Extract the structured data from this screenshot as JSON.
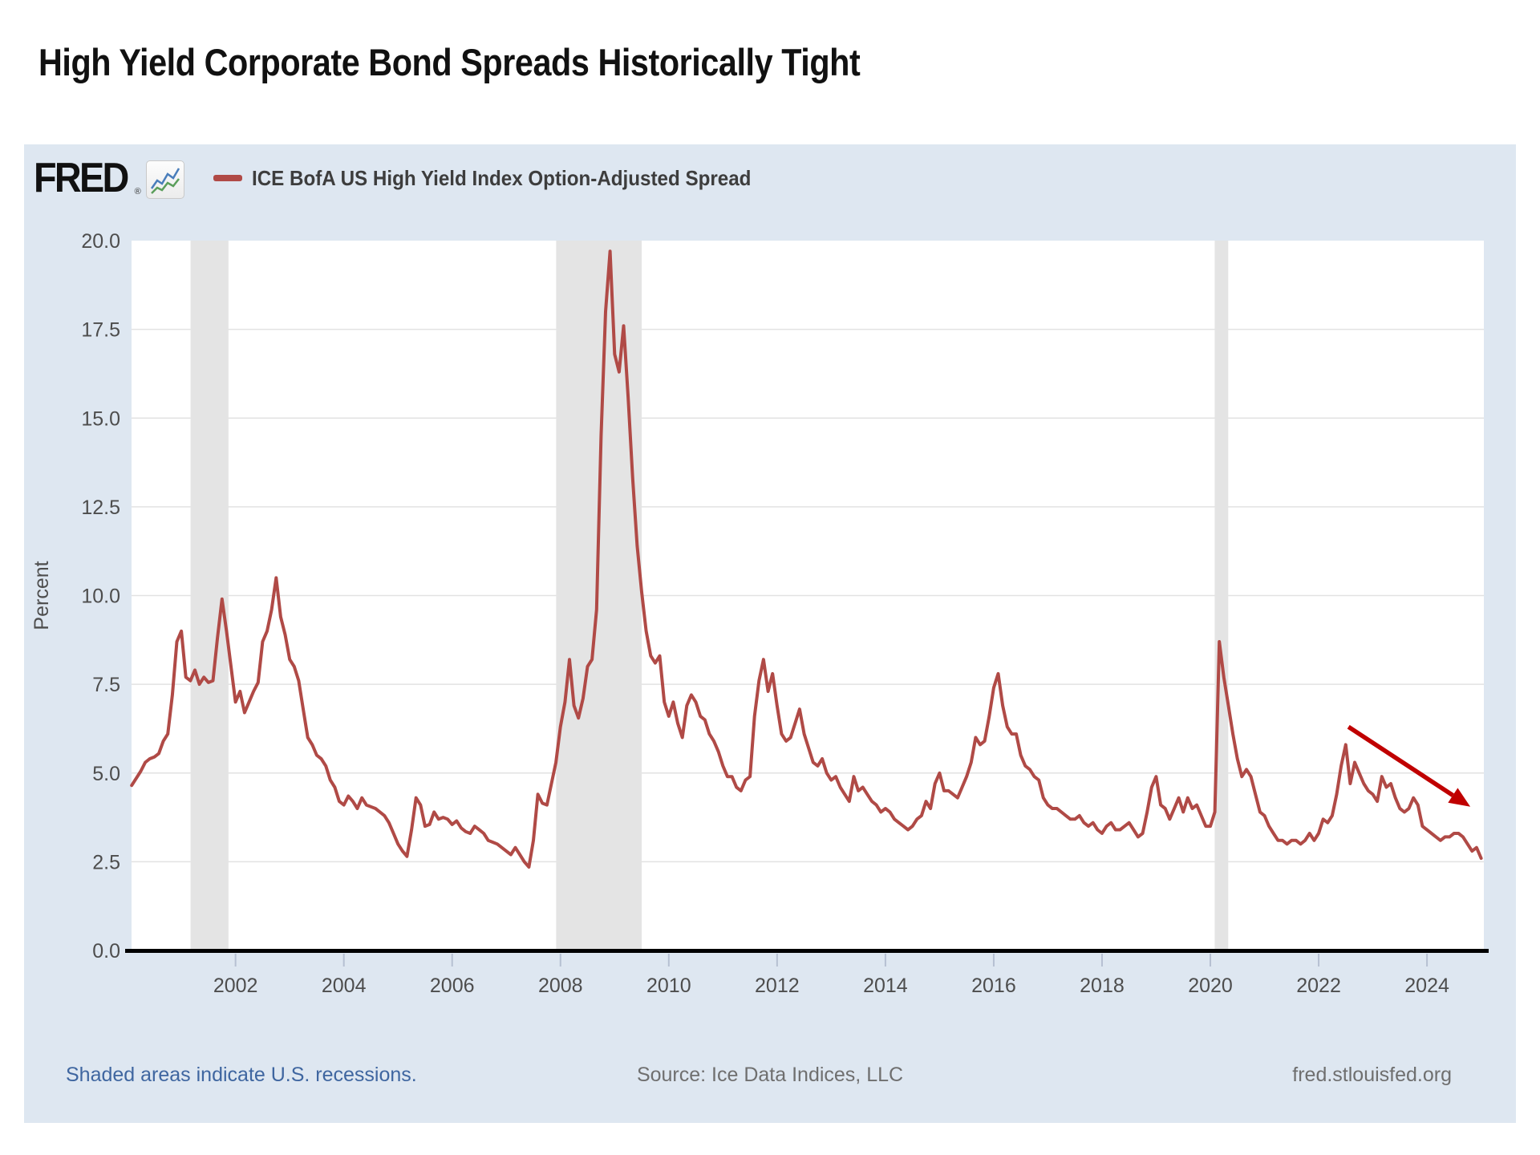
{
  "page": {
    "title": "High Yield Corporate Bond Spreads Historically Tight"
  },
  "header": {
    "brand": "FRED",
    "registered_mark": "®",
    "legend_label": "ICE BofA US High Yield Index Option-Adjusted Spread"
  },
  "footer": {
    "recession_note": "Shaded areas indicate U.S. recessions.",
    "source_note": "Source: Ice Data Indices, LLC",
    "site_link": "fred.stlouisfed.org"
  },
  "colors": {
    "card_background": "#dee7f1",
    "plot_background": "#ffffff",
    "series_line": "#b04a46",
    "recession_band": "#e4e4e4",
    "gridline": "#e2e2e2",
    "axis_line": "#000000",
    "tick_mark": "#b6c0d2",
    "tick_label": "#4d4d4d",
    "annotation_arrow": "#c00000"
  },
  "chart_data": {
    "type": "line",
    "title": "ICE BofA US High Yield Index Option-Adjusted Spread",
    "ylabel": "Percent",
    "ylim": [
      0,
      20
    ],
    "ytick_step": 2.5,
    "xlim": [
      2000.08,
      2025.05
    ],
    "xticks": [
      2002,
      2004,
      2006,
      2008,
      2010,
      2012,
      2014,
      2016,
      2018,
      2020,
      2022,
      2024
    ],
    "grid": "horizontal-only",
    "legend_position": "top-left",
    "series_name": "ICE BofA US High Yield Index Option-Adjusted Spread",
    "start_year": 2000.0833,
    "step_years": 0.08333,
    "unit": "percent",
    "values": [
      4.65,
      4.85,
      5.05,
      5.3,
      5.4,
      5.45,
      5.55,
      5.9,
      6.1,
      7.2,
      8.7,
      9.0,
      7.7,
      7.6,
      7.9,
      7.5,
      7.7,
      7.55,
      7.6,
      8.8,
      9.9,
      9.0,
      8.0,
      7.0,
      7.3,
      6.7,
      7.0,
      7.3,
      7.55,
      8.7,
      9.0,
      9.6,
      10.5,
      9.4,
      8.9,
      8.2,
      8.0,
      7.6,
      6.8,
      6.0,
      5.8,
      5.5,
      5.4,
      5.2,
      4.8,
      4.6,
      4.2,
      4.1,
      4.35,
      4.2,
      4.0,
      4.3,
      4.1,
      4.05,
      4.0,
      3.9,
      3.8,
      3.6,
      3.3,
      3.0,
      2.8,
      2.65,
      3.4,
      4.3,
      4.1,
      3.5,
      3.55,
      3.9,
      3.7,
      3.75,
      3.7,
      3.55,
      3.65,
      3.45,
      3.35,
      3.3,
      3.5,
      3.4,
      3.3,
      3.1,
      3.05,
      3.0,
      2.9,
      2.8,
      2.7,
      2.9,
      2.7,
      2.5,
      2.35,
      3.1,
      4.4,
      4.15,
      4.1,
      4.7,
      5.3,
      6.3,
      7.0,
      8.2,
      6.9,
      6.55,
      7.1,
      8.0,
      8.2,
      9.6,
      14.5,
      18.0,
      19.7,
      16.8,
      16.3,
      17.6,
      15.6,
      13.3,
      11.4,
      10.1,
      9.0,
      8.3,
      8.1,
      8.3,
      7.0,
      6.6,
      7.0,
      6.4,
      6.0,
      6.9,
      7.2,
      7.0,
      6.6,
      6.5,
      6.1,
      5.9,
      5.6,
      5.2,
      4.9,
      4.9,
      4.6,
      4.5,
      4.8,
      4.9,
      6.6,
      7.6,
      8.2,
      7.3,
      7.8,
      6.9,
      6.1,
      5.9,
      6.0,
      6.4,
      6.8,
      6.1,
      5.7,
      5.3,
      5.2,
      5.4,
      5.0,
      4.8,
      4.9,
      4.6,
      4.4,
      4.2,
      4.9,
      4.5,
      4.6,
      4.4,
      4.2,
      4.1,
      3.9,
      4.0,
      3.9,
      3.7,
      3.6,
      3.5,
      3.4,
      3.5,
      3.7,
      3.8,
      4.2,
      4.0,
      4.7,
      5.0,
      4.5,
      4.5,
      4.4,
      4.3,
      4.6,
      4.9,
      5.3,
      6.0,
      5.8,
      5.9,
      6.6,
      7.4,
      7.8,
      6.9,
      6.3,
      6.1,
      6.1,
      5.5,
      5.2,
      5.1,
      4.9,
      4.8,
      4.3,
      4.1,
      4.0,
      4.0,
      3.9,
      3.8,
      3.7,
      3.7,
      3.8,
      3.6,
      3.5,
      3.6,
      3.4,
      3.3,
      3.5,
      3.6,
      3.4,
      3.4,
      3.5,
      3.6,
      3.4,
      3.2,
      3.3,
      3.9,
      4.6,
      4.9,
      4.1,
      4.0,
      3.7,
      4.0,
      4.3,
      3.9,
      4.3,
      4.0,
      4.1,
      3.8,
      3.5,
      3.5,
      3.9,
      8.7,
      7.7,
      6.9,
      6.1,
      5.4,
      4.9,
      5.1,
      4.9,
      4.4,
      3.9,
      3.8,
      3.5,
      3.3,
      3.1,
      3.1,
      3.0,
      3.1,
      3.1,
      3.0,
      3.1,
      3.3,
      3.1,
      3.3,
      3.7,
      3.6,
      3.8,
      4.4,
      5.2,
      5.8,
      4.7,
      5.3,
      5.0,
      4.7,
      4.5,
      4.4,
      4.2,
      4.9,
      4.6,
      4.7,
      4.3,
      4.0,
      3.9,
      4.0,
      4.3,
      4.1,
      3.5,
      3.4,
      3.3,
      3.2,
      3.1,
      3.2,
      3.2,
      3.3,
      3.3,
      3.2,
      3.0,
      2.8,
      2.9,
      2.6
    ],
    "recessions": [
      [
        2001.17,
        2001.87
      ],
      [
        2007.92,
        2009.5
      ],
      [
        2020.08,
        2020.33
      ]
    ],
    "annotation_arrow": {
      "from_year": 2022.55,
      "from_value": 6.3,
      "to_year": 2024.8,
      "to_value": 4.05
    }
  }
}
